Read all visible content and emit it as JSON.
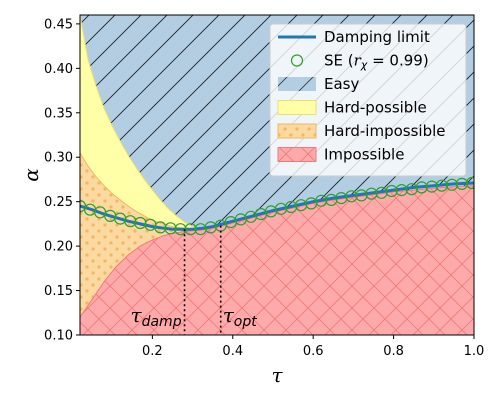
{
  "chart_data": {
    "type": "area",
    "xlabel": "τ",
    "ylabel": "α",
    "xlim": [
      0.02,
      1.0
    ],
    "ylim": [
      0.1,
      0.46
    ],
    "xticks": [
      0.2,
      0.4,
      0.6,
      0.8,
      1.0
    ],
    "xtick_labels": [
      "0.2",
      "0.4",
      "0.6",
      "0.8",
      "1.0"
    ],
    "yticks": [
      0.1,
      0.15,
      0.2,
      0.25,
      0.3,
      0.35,
      0.4,
      0.45
    ],
    "ytick_labels": [
      "0.10",
      "0.15",
      "0.20",
      "0.25",
      "0.30",
      "0.35",
      "0.40",
      "0.45"
    ],
    "legend_position": "upper-right",
    "colors": {
      "easy": "#b3cde3",
      "hard_possible": "#ffffa8",
      "hard_impossible": "#fbd9a0",
      "impossible": "#ffaaaa",
      "line": "#1f77b4",
      "marker": "#2ca02c"
    },
    "series": [
      {
        "name": "Damping limit",
        "kind": "line",
        "tau": [
          0.02,
          0.05,
          0.08,
          0.11,
          0.14,
          0.17,
          0.2,
          0.23,
          0.25,
          0.275,
          0.3,
          0.325,
          0.35,
          0.4,
          0.45,
          0.5,
          0.55,
          0.6,
          0.65,
          0.7,
          0.75,
          0.8,
          0.85,
          0.9,
          0.95,
          1.0
        ],
        "alpha": [
          0.245,
          0.241,
          0.236,
          0.232,
          0.228,
          0.225,
          0.222,
          0.22,
          0.219,
          0.219,
          0.219,
          0.22,
          0.222,
          0.228,
          0.234,
          0.24,
          0.245,
          0.25,
          0.254,
          0.257,
          0.26,
          0.263,
          0.266,
          0.268,
          0.27,
          0.271
        ]
      },
      {
        "name": "SE (r_χ = 0.99)",
        "kind": "scatter",
        "tau": [
          0.02,
          0.045,
          0.07,
          0.095,
          0.12,
          0.145,
          0.17,
          0.195,
          0.22,
          0.245,
          0.27,
          0.295,
          0.32,
          0.345,
          0.37,
          0.395,
          0.42,
          0.445,
          0.47,
          0.495,
          0.52,
          0.545,
          0.57,
          0.595,
          0.62,
          0.645,
          0.67,
          0.695,
          0.72,
          0.745,
          0.77,
          0.795,
          0.82,
          0.845,
          0.87,
          0.895,
          0.92,
          0.945,
          0.97,
          0.995
        ],
        "alpha": [
          0.245,
          0.241,
          0.238,
          0.234,
          0.231,
          0.228,
          0.226,
          0.224,
          0.221,
          0.22,
          0.219,
          0.219,
          0.219,
          0.221,
          0.223,
          0.227,
          0.23,
          0.233,
          0.236,
          0.239,
          0.242,
          0.244,
          0.246,
          0.248,
          0.251,
          0.252,
          0.254,
          0.256,
          0.257,
          0.259,
          0.26,
          0.262,
          0.263,
          0.264,
          0.266,
          0.267,
          0.268,
          0.269,
          0.27,
          0.271
        ]
      }
    ],
    "regions": {
      "hard_possible_upper": {
        "tau": [
          0.02,
          0.04,
          0.06,
          0.08,
          0.1,
          0.12,
          0.14,
          0.16,
          0.18,
          0.2,
          0.22,
          0.24,
          0.26,
          0.28,
          0.3,
          0.32
        ],
        "alpha": [
          0.46,
          0.41,
          0.38,
          0.355,
          0.335,
          0.318,
          0.302,
          0.288,
          0.275,
          0.263,
          0.252,
          0.242,
          0.234,
          0.227,
          0.222,
          0.219
        ]
      },
      "hard_impossible_upper": {
        "tau": [
          0.02,
          0.04,
          0.06,
          0.08,
          0.1,
          0.12,
          0.14,
          0.16,
          0.18,
          0.2,
          0.22,
          0.24,
          0.26,
          0.28,
          0.3,
          0.32
        ],
        "alpha": [
          0.305,
          0.29,
          0.278,
          0.268,
          0.259,
          0.252,
          0.245,
          0.239,
          0.234,
          0.229,
          0.226,
          0.223,
          0.221,
          0.22,
          0.219,
          0.219
        ]
      },
      "impossible_upper": {
        "tau": [
          0.02,
          0.05,
          0.08,
          0.11,
          0.14,
          0.17,
          0.2,
          0.23,
          0.26,
          0.29,
          0.32,
          0.35,
          0.4,
          0.45,
          0.5,
          0.55,
          0.6,
          0.65,
          0.7,
          0.75,
          0.8,
          0.85,
          0.9,
          0.95,
          1.0
        ],
        "alpha": [
          0.12,
          0.14,
          0.16,
          0.177,
          0.19,
          0.2,
          0.207,
          0.212,
          0.215,
          0.217,
          0.218,
          0.22,
          0.226,
          0.232,
          0.238,
          0.243,
          0.248,
          0.252,
          0.255,
          0.258,
          0.261,
          0.263,
          0.265,
          0.267,
          0.268
        ]
      }
    },
    "vlines": [
      {
        "tau": 0.28,
        "alpha_top": 0.219,
        "label": "τ",
        "sub": "damp"
      },
      {
        "tau": 0.37,
        "alpha_top": 0.223,
        "label": "τ",
        "sub": "opt"
      }
    ],
    "legend": [
      {
        "label": "Damping limit",
        "kind": "line"
      },
      {
        "label": "SE (",
        "label_var": "r",
        "label_sub": "χ",
        "label_rest": " = 0.99)",
        "kind": "marker"
      },
      {
        "label": "Easy",
        "kind": "easy"
      },
      {
        "label": "Hard-possible",
        "kind": "hard_possible"
      },
      {
        "label": "Hard-impossible",
        "kind": "hard_impossible"
      },
      {
        "label": "Impossible",
        "kind": "impossible"
      }
    ]
  }
}
